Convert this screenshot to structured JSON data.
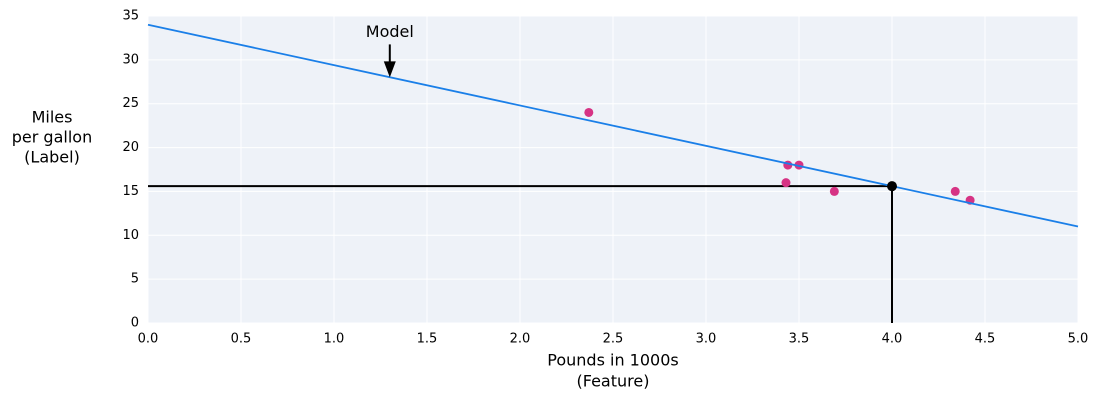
{
  "chart_data": {
    "type": "scatter",
    "x_label": [
      "Pounds in 1000s",
      "(Feature)"
    ],
    "y_label": [
      "Miles",
      "per gallon",
      "(Label)"
    ],
    "series": [
      {
        "type": "scatter",
        "color": "#d63384",
        "x": [
          2.37,
          3.44,
          3.5,
          3.43,
          3.69,
          4.34,
          4.42
        ],
        "values": [
          24,
          18,
          18,
          16,
          15,
          15,
          14
        ]
      },
      {
        "type": "line",
        "color": "#1a7fe8",
        "x": [
          0,
          5
        ],
        "values": [
          34,
          11
        ]
      }
    ],
    "prediction": {
      "x": 4,
      "y": 15.6,
      "color": "#000000"
    },
    "annotation": {
      "text": "Model",
      "x": 1.3,
      "y": 28
    },
    "xlim": [
      0,
      5
    ],
    "ylim": [
      0,
      35
    ],
    "xticks": [
      {
        "value": 0,
        "label": "0.0"
      },
      0.5,
      {
        "value": 1,
        "label": "1.0"
      },
      1.5,
      {
        "value": 2,
        "label": "2.0"
      },
      2.5,
      {
        "value": 3,
        "label": "3.0"
      },
      3.5,
      {
        "value": 4,
        "label": "4.0"
      },
      4.5,
      {
        "value": 5,
        "label": "5.0"
      }
    ],
    "yticks": [
      0,
      5,
      10,
      15,
      20,
      25,
      30,
      35
    ],
    "grid": true
  }
}
